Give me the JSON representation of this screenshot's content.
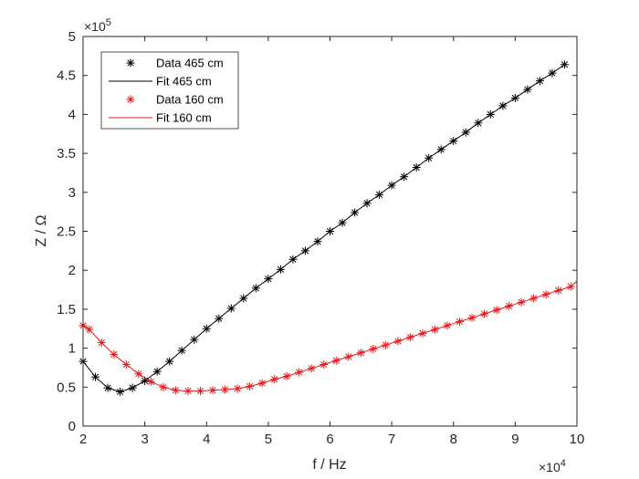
{
  "chart_data": {
    "type": "line",
    "title": "",
    "xlabel": "f / Hz",
    "ylabel": "Z / Ω",
    "x_multiplier": "×10",
    "x_exponent": "4",
    "y_multiplier": "×10",
    "y_exponent": "5",
    "xlim": [
      2,
      10
    ],
    "ylim": [
      0,
      5
    ],
    "xticks": [
      2,
      3,
      4,
      5,
      6,
      7,
      8,
      9,
      10
    ],
    "yticks": [
      0,
      0.5,
      1,
      1.5,
      2,
      2.5,
      3,
      3.5,
      4,
      4.5,
      5
    ],
    "ytick_labels": [
      "0",
      "0.5",
      "1",
      "1.5",
      "2",
      "2.5",
      "3",
      "3.5",
      "4",
      "4.5",
      "5"
    ],
    "grid": false,
    "legend_position": "top-left",
    "colors": {
      "black": "#000000",
      "red": "#e41a1c",
      "axis": "#262626"
    },
    "series": [
      {
        "name": "Data 465 cm",
        "style": "markers",
        "marker": "*",
        "color": "#000000",
        "x": [
          2.0,
          2.2,
          2.4,
          2.6,
          2.8,
          3.0,
          3.2,
          3.4,
          3.6,
          3.8,
          4.0,
          4.2,
          4.4,
          4.6,
          4.8,
          5.0,
          5.2,
          5.4,
          5.6,
          5.8,
          6.0,
          6.2,
          6.4,
          6.6,
          6.8,
          7.0,
          7.2,
          7.4,
          7.6,
          7.8,
          8.0,
          8.2,
          8.4,
          8.6,
          8.8,
          9.0,
          9.2,
          9.4,
          9.6,
          9.8
        ],
        "y": [
          0.83,
          0.63,
          0.49,
          0.44,
          0.49,
          0.58,
          0.7,
          0.83,
          0.97,
          1.11,
          1.25,
          1.38,
          1.51,
          1.64,
          1.77,
          1.89,
          2.01,
          2.14,
          2.25,
          2.37,
          2.5,
          2.61,
          2.74,
          2.86,
          2.97,
          3.09,
          3.2,
          3.32,
          3.44,
          3.55,
          3.66,
          3.77,
          3.89,
          4.0,
          4.11,
          4.21,
          4.32,
          4.43,
          4.53,
          4.64
        ]
      },
      {
        "name": "Fit 465 cm",
        "style": "line",
        "color": "#000000",
        "x": [
          2.0,
          2.2,
          2.4,
          2.6,
          2.8,
          3.0,
          3.2,
          3.4,
          3.6,
          3.8,
          4.0,
          4.2,
          4.4,
          4.6,
          4.8,
          5.0,
          5.2,
          5.4,
          5.6,
          5.8,
          6.0,
          6.2,
          6.4,
          6.6,
          6.8,
          7.0,
          7.2,
          7.4,
          7.6,
          7.8,
          8.0,
          8.2,
          8.4,
          8.6,
          8.8,
          9.0,
          9.2,
          9.4,
          9.6,
          9.8
        ],
        "y": [
          0.83,
          0.63,
          0.49,
          0.44,
          0.49,
          0.58,
          0.7,
          0.83,
          0.97,
          1.11,
          1.25,
          1.38,
          1.51,
          1.64,
          1.77,
          1.89,
          2.01,
          2.14,
          2.25,
          2.37,
          2.5,
          2.61,
          2.74,
          2.86,
          2.97,
          3.09,
          3.2,
          3.32,
          3.44,
          3.55,
          3.66,
          3.77,
          3.89,
          4.0,
          4.11,
          4.21,
          4.32,
          4.43,
          4.53,
          4.64
        ]
      },
      {
        "name": "Data 160 cm",
        "style": "markers",
        "marker": "*",
        "color": "#e41a1c",
        "x": [
          2.0,
          2.1,
          2.3,
          2.5,
          2.7,
          2.9,
          3.1,
          3.3,
          3.5,
          3.7,
          3.9,
          4.1,
          4.3,
          4.5,
          4.7,
          4.9,
          5.1,
          5.3,
          5.5,
          5.7,
          5.9,
          6.1,
          6.3,
          6.5,
          6.7,
          6.9,
          7.1,
          7.3,
          7.5,
          7.7,
          7.9,
          8.1,
          8.3,
          8.5,
          8.7,
          8.9,
          9.1,
          9.3,
          9.5,
          9.7,
          9.9
        ],
        "y": [
          1.29,
          1.24,
          1.07,
          0.92,
          0.79,
          0.67,
          0.57,
          0.5,
          0.46,
          0.45,
          0.45,
          0.46,
          0.47,
          0.48,
          0.51,
          0.55,
          0.6,
          0.64,
          0.69,
          0.74,
          0.79,
          0.84,
          0.89,
          0.94,
          0.99,
          1.04,
          1.09,
          1.14,
          1.19,
          1.24,
          1.29,
          1.34,
          1.39,
          1.44,
          1.49,
          1.54,
          1.59,
          1.64,
          1.69,
          1.74,
          1.79
        ]
      },
      {
        "name": "Fit 160 cm",
        "style": "line",
        "color": "#e41a1c",
        "x": [
          2.0,
          2.1,
          2.3,
          2.5,
          2.7,
          2.9,
          3.1,
          3.3,
          3.5,
          3.7,
          3.9,
          4.1,
          4.3,
          4.5,
          4.7,
          4.9,
          5.1,
          5.3,
          5.5,
          5.7,
          5.9,
          6.1,
          6.3,
          6.5,
          6.7,
          6.9,
          7.1,
          7.3,
          7.5,
          7.7,
          7.9,
          8.1,
          8.3,
          8.5,
          8.7,
          8.9,
          9.1,
          9.3,
          9.5,
          9.7,
          9.9,
          10.0
        ],
        "y": [
          1.29,
          1.24,
          1.07,
          0.92,
          0.79,
          0.67,
          0.57,
          0.5,
          0.46,
          0.45,
          0.45,
          0.46,
          0.47,
          0.48,
          0.51,
          0.55,
          0.6,
          0.64,
          0.69,
          0.74,
          0.79,
          0.84,
          0.89,
          0.94,
          0.99,
          1.04,
          1.09,
          1.14,
          1.19,
          1.24,
          1.29,
          1.34,
          1.39,
          1.44,
          1.49,
          1.54,
          1.59,
          1.64,
          1.69,
          1.74,
          1.79,
          1.86
        ]
      }
    ]
  }
}
